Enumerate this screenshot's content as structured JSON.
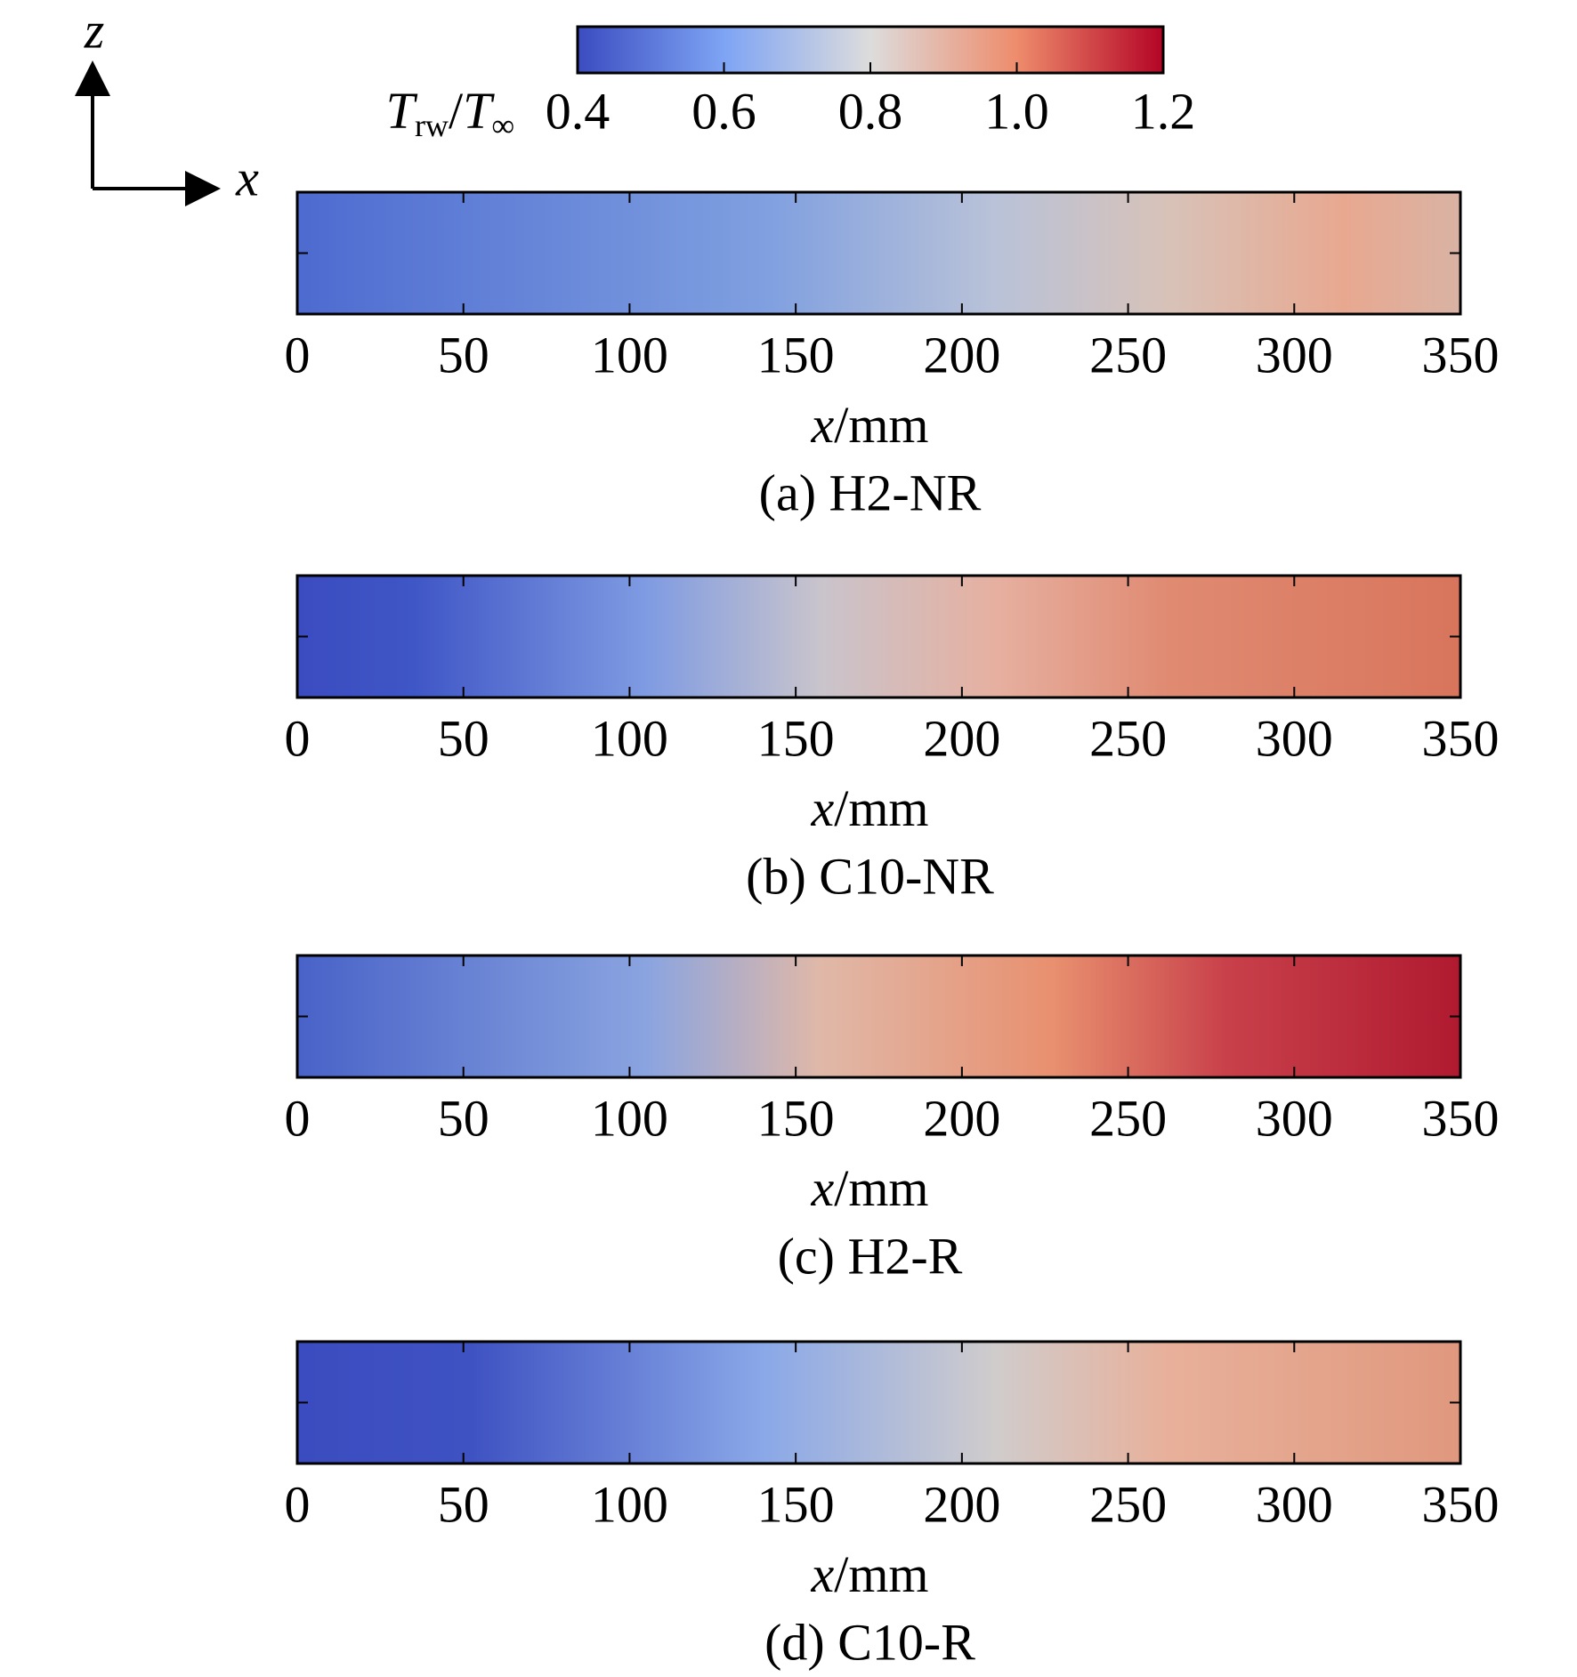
{
  "axes_indicator": {
    "vertical": "z",
    "horizontal": "x"
  },
  "colorbar": {
    "label": {
      "numerator": "T",
      "numerator_sub": "rw",
      "divider": "/",
      "denominator": "T",
      "denominator_sub": "∞"
    },
    "clim": [
      0.4,
      1.2
    ],
    "ticks": [
      0.4,
      0.6,
      0.8,
      {
        "value": 1,
        "label": "1.0"
      },
      1.2
    ]
  },
  "chart_data": [
    {
      "type": "contour",
      "title": "(a) H2-NR",
      "xlabel": {
        "variable": "x",
        "unit": "/mm"
      },
      "xlim": [
        0,
        350
      ],
      "xticks": [
        0,
        50,
        100,
        150,
        200,
        250,
        300,
        350
      ]
    },
    {
      "type": "contour",
      "title": "(b) C10-NR",
      "xlabel": {
        "variable": "x",
        "unit": "/mm"
      },
      "xlim": [
        0,
        350
      ],
      "xticks": [
        0,
        50,
        100,
        150,
        200,
        250,
        300,
        350
      ]
    },
    {
      "type": "contour",
      "title": "(c) H2-R",
      "xlabel": {
        "variable": "x",
        "unit": "/mm"
      },
      "xlim": [
        0,
        350
      ],
      "xticks": [
        0,
        50,
        100,
        150,
        200,
        250,
        300,
        350
      ]
    },
    {
      "type": "contour",
      "title": "(d) C10-R",
      "xlabel": {
        "variable": "x",
        "unit": "/mm"
      },
      "xlim": [
        0,
        350
      ],
      "xticks": [
        0,
        50,
        100,
        150,
        200,
        250,
        300,
        350
      ]
    }
  ]
}
